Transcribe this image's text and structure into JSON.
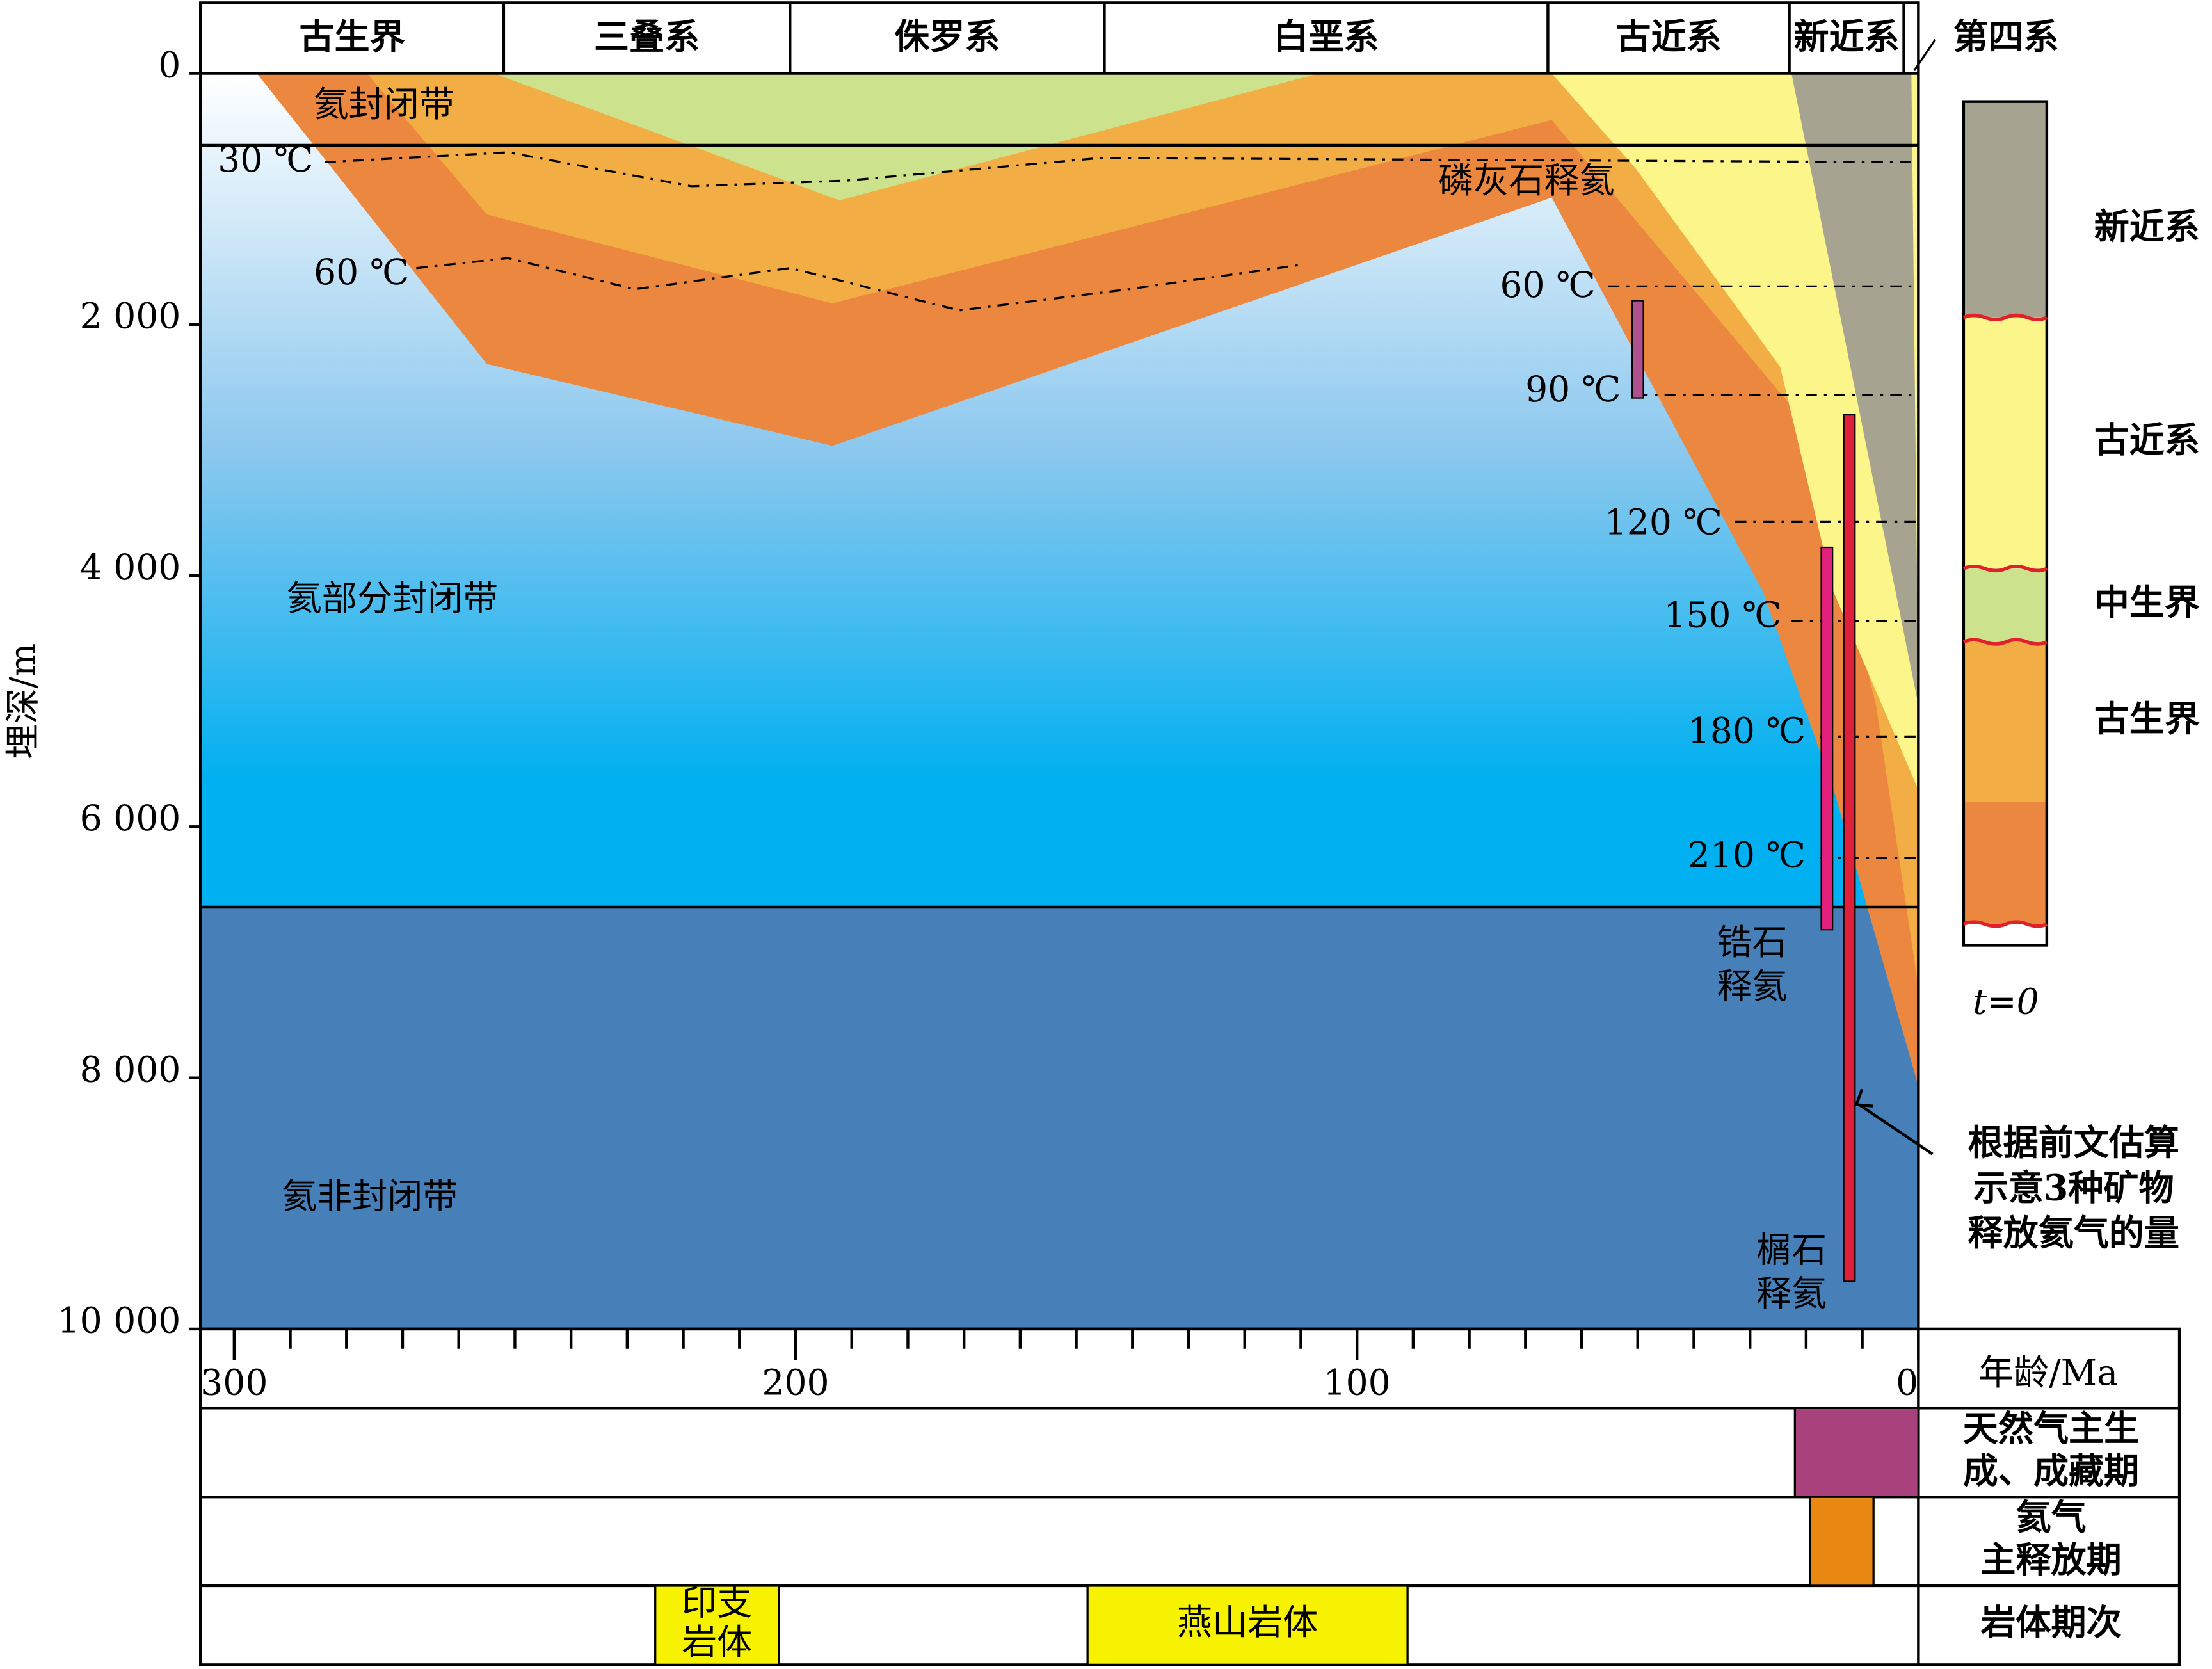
{
  "chart_data": {
    "type": "burial-history",
    "y_label": "埋深/m",
    "x_label": "年龄/Ma",
    "xlim": [
      306,
      0
    ],
    "ylim": [
      0,
      10000
    ],
    "xticks": [
      300,
      200,
      100,
      0
    ],
    "xminorticks": [
      290,
      280,
      270,
      260,
      250,
      240,
      230,
      220,
      210,
      190,
      180,
      170,
      160,
      150,
      140,
      130,
      120,
      110,
      90,
      80,
      70,
      60,
      50,
      40,
      30,
      20,
      10
    ],
    "yticks": [
      0,
      {
        "value": 2000,
        "label": "2 000"
      },
      {
        "value": 4000,
        "label": "4 000"
      },
      {
        "value": 6000,
        "label": "6 000"
      },
      {
        "value": 8000,
        "label": "8 000"
      },
      {
        "value": 10000,
        "label": "10 000"
      }
    ],
    "periods": [
      {
        "name": "古生界",
        "start": 306,
        "end": 252
      },
      {
        "name": "三叠系",
        "start": 252,
        "end": 201
      },
      {
        "name": "侏罗系",
        "start": 201,
        "end": 145
      },
      {
        "name": "白垩系",
        "start": 145,
        "end": 66
      },
      {
        "name": "古近系",
        "start": 66,
        "end": 23
      },
      {
        "name": "新近系",
        "start": 23,
        "end": 2.6
      }
    ],
    "period_outside": "第四系",
    "temperatures": [
      "30 ℃",
      "60 ℃",
      "60 ℃",
      "90 ℃",
      "120 ℃",
      "150 ℃",
      "180 ℃",
      "210 ℃"
    ],
    "zones": [
      "氦封闭带",
      "氦部分封闭带",
      "氦非封闭带"
    ],
    "minerals": [
      {
        "label": [
          "磷灰石释氦"
        ],
        "age": 50,
        "top": 1810,
        "bottom": 2585,
        "color": "#b0508c"
      },
      {
        "label": [
          "锆石",
          "释氦"
        ],
        "age": 16.3,
        "top": 3775,
        "bottom": 6820,
        "color": "#e0207a"
      },
      {
        "label": [
          "榍石",
          "释氦"
        ],
        "age": 12.3,
        "top": 2720,
        "bottom": 9620,
        "color": "#e0203a"
      }
    ],
    "note": [
      "根据前文估算",
      "示意3种矿物",
      "释放氦气的量"
    ],
    "legend": [
      {
        "name": "新近系",
        "color": "#a7a391"
      },
      {
        "name": "古近系",
        "color": "#fbf58a"
      },
      {
        "name": "中生界",
        "color": "#cde28c"
      },
      {
        "name": "古生界",
        "color": "#f3ad45"
      }
    ],
    "legend_caption": "t=0",
    "rows": [
      {
        "label": [
          "天然气主生",
          "成、成藏期"
        ],
        "bars": [
          {
            "start": 22,
            "end": 0,
            "color": "#a8417c"
          }
        ]
      },
      {
        "label": [
          "氦气",
          "主释放期"
        ],
        "bars": [
          {
            "start": 19.3,
            "end": 8,
            "color": "#ea8814"
          }
        ]
      },
      {
        "label": [
          "岩体期次"
        ],
        "bars": [
          {
            "name": [
              "印支",
              "岩体"
            ],
            "start": 225,
            "end": 203,
            "color": "#f6f200"
          },
          {
            "name": [
              "燕山岩体"
            ],
            "start": 148,
            "end": 91,
            "color": "#f6f200"
          }
        ]
      }
    ]
  }
}
